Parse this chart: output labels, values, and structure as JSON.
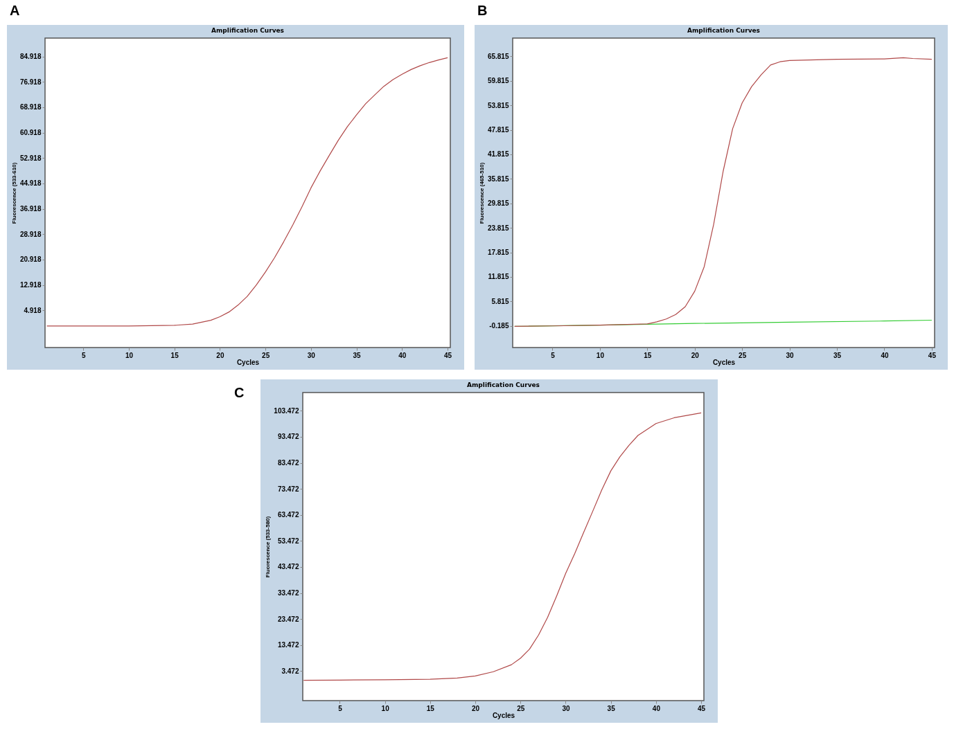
{
  "chart_data": [
    {
      "type": "line",
      "title": "Amplification Curves",
      "xlabel": "Cycles",
      "ylabel": "Fluorescence (533-610)",
      "annotations": [
        "A"
      ],
      "xlim": [
        0.8,
        45.3
      ],
      "xticks": [
        5,
        10,
        15,
        20,
        25,
        30,
        35,
        40,
        45
      ],
      "ylim": [
        -6.8,
        90.7
      ],
      "yticks": [
        4.918,
        12.918,
        20.918,
        28.918,
        36.918,
        44.918,
        52.918,
        60.918,
        68.918,
        76.918,
        84.918
      ],
      "series": [
        {
          "color": "#b04848",
          "x": [
            1,
            5,
            10,
            15,
            17,
            19,
            20,
            21,
            22,
            23,
            24,
            25,
            26,
            27,
            28,
            29,
            30,
            31,
            32,
            33,
            34,
            35,
            36,
            37,
            38,
            39,
            40,
            41,
            42,
            43,
            44,
            45
          ],
          "values": [
            0,
            0,
            0,
            0.2,
            0.6,
            1.8,
            2.9,
            4.4,
            6.6,
            9.3,
            12.9,
            17,
            21.5,
            26.5,
            31.8,
            37.5,
            43.5,
            48.8,
            53.7,
            58.5,
            62.8,
            66.5,
            70,
            72.8,
            75.5,
            77.6,
            79.3,
            80.8,
            82,
            83,
            83.8,
            84.5
          ]
        }
      ]
    },
    {
      "type": "line",
      "title": "Amplification Curves",
      "xlabel": "Cycles",
      "ylabel": "Fluorescence (465-510)",
      "annotations": [
        "B"
      ],
      "xlim": [
        0.8,
        45.3
      ],
      "xticks": [
        5,
        10,
        15,
        20,
        25,
        30,
        35,
        40,
        45
      ],
      "ylim": [
        -5.5,
        70.3
      ],
      "yticks": [
        -0.185,
        5.815,
        11.815,
        17.815,
        23.815,
        29.815,
        35.815,
        41.815,
        47.815,
        53.815,
        59.815,
        65.815
      ],
      "series": [
        {
          "color": "#33cc33",
          "x": [
            1,
            10,
            15,
            20,
            30,
            40,
            45
          ],
          "values": [
            -0.3,
            0,
            0.2,
            0.4,
            0.7,
            1,
            1.2
          ]
        },
        {
          "color": "#b04848",
          "x": [
            1,
            5,
            10,
            15,
            16,
            17,
            18,
            19,
            20,
            21,
            22,
            23,
            24,
            25,
            26,
            27,
            28,
            29,
            30,
            35,
            40,
            42,
            43,
            45
          ],
          "values": [
            -0.3,
            -0.2,
            0,
            0.3,
            0.8,
            1.5,
            2.6,
            4.5,
            8.3,
            14.3,
            24.7,
            37.7,
            48.1,
            54.4,
            58.4,
            61.3,
            63.7,
            64.5,
            64.8,
            65.1,
            65.2,
            65.5,
            65.3,
            65.1
          ]
        }
      ]
    },
    {
      "type": "line",
      "title": "Amplification Curves",
      "xlabel": "Cycles",
      "ylabel": "Fluorescence (533-580)",
      "annotations": [
        "C"
      ],
      "xlim": [
        0.9,
        45.3
      ],
      "xticks": [
        5,
        10,
        15,
        20,
        25,
        30,
        35,
        40,
        45
      ],
      "ylim": [
        -7.9,
        110.5
      ],
      "yticks": [
        3.472,
        13.472,
        23.472,
        33.472,
        43.472,
        53.472,
        63.472,
        73.472,
        83.472,
        93.472,
        103.472
      ],
      "series": [
        {
          "color": "#b04848",
          "x": [
            1,
            5,
            10,
            15,
            18,
            20,
            22,
            24,
            25,
            26,
            27,
            28,
            29,
            30,
            31,
            32,
            33,
            34,
            35,
            36,
            37,
            38,
            40,
            42,
            45
          ],
          "values": [
            -0.1,
            0,
            0.1,
            0.3,
            0.8,
            1.6,
            3.2,
            5.9,
            8.4,
            11.9,
            17.3,
            24.1,
            32.3,
            41,
            48.6,
            56.8,
            64.9,
            73.1,
            80.4,
            85.8,
            90.2,
            94,
            98.6,
            100.8,
            102.7
          ]
        }
      ]
    }
  ]
}
